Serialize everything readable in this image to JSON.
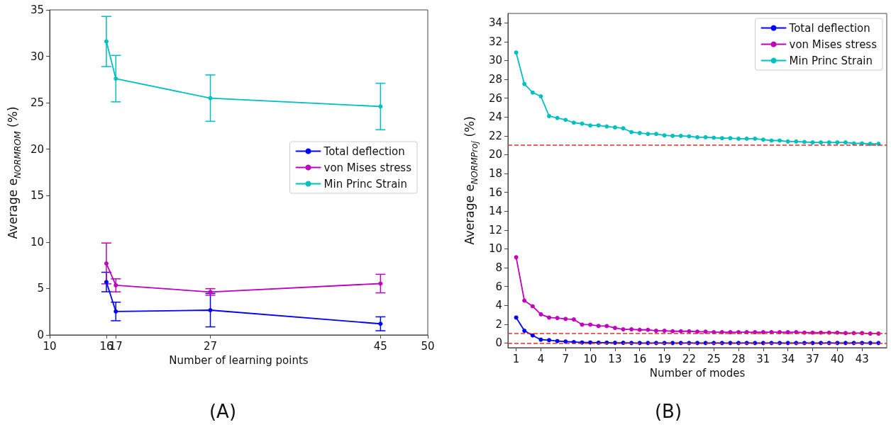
{
  "chart_data": [
    {
      "type": "line",
      "title": "(A)",
      "xlabel": "Number of learning points",
      "ylabel": "Average e$_{NORMROM}$ (%)",
      "x": [
        16,
        17,
        27,
        45
      ],
      "xlim": [
        10,
        50
      ],
      "xticks": [
        10,
        16,
        17,
        27,
        45,
        50
      ],
      "ylim": [
        0,
        35
      ],
      "yticks": [
        0,
        5,
        10,
        15,
        20,
        25,
        30,
        35
      ],
      "marker": "circle",
      "legend": "right",
      "grid": false,
      "series": [
        {
          "name": "Total deflection",
          "color": "#0000ff",
          "values": [
            5.7,
            2.53,
            2.67,
            1.2
          ],
          "errors": [
            1.05,
            1.0,
            1.8,
            0.75
          ]
        },
        {
          "name": "von Mises stress",
          "color": "#bf00bf",
          "values": [
            7.7,
            5.34,
            4.63,
            5.53
          ],
          "errors": [
            2.2,
            0.7,
            0.35,
            1.0
          ]
        },
        {
          "name": "Min Princ Strain",
          "color": "#00bfbf",
          "values": [
            31.6,
            27.6,
            25.5,
            24.6
          ],
          "errors": [
            2.7,
            2.5,
            2.5,
            2.5
          ]
        }
      ]
    },
    {
      "type": "line",
      "title": "(B)",
      "xlabel": "Number of modes",
      "ylabel": "Average e$_{NORMProj}$ (%)",
      "x": [
        1,
        2,
        3,
        4,
        5,
        6,
        7,
        8,
        9,
        10,
        11,
        12,
        13,
        14,
        15,
        16,
        17,
        18,
        19,
        20,
        21,
        22,
        23,
        24,
        25,
        26,
        27,
        28,
        29,
        30,
        31,
        32,
        33,
        34,
        35,
        36,
        37,
        38,
        39,
        40,
        41,
        42,
        43,
        44,
        45
      ],
      "xlim": [
        0,
        46
      ],
      "xticks": [
        1,
        4,
        7,
        10,
        13,
        16,
        19,
        22,
        25,
        28,
        31,
        34,
        37,
        40,
        43
      ],
      "ylim": [
        -0.5,
        35
      ],
      "yticks": [
        0,
        2,
        4,
        6,
        8,
        10,
        12,
        14,
        16,
        18,
        20,
        22,
        24,
        26,
        28,
        30,
        32,
        34
      ],
      "marker": "circle",
      "legend": "top right",
      "grid": false,
      "ref_lines": [
        {
          "axis": "y",
          "value": 21,
          "color": "#e0302a",
          "line_style": "dashed"
        },
        {
          "axis": "y",
          "value": 1,
          "color": "#e0302a",
          "line_style": "dashed"
        },
        {
          "axis": "y",
          "value": 0,
          "color": "#e0302a",
          "line_style": "dashed"
        }
      ],
      "series": [
        {
          "name": "Total deflection",
          "color": "#0000ff",
          "values": [
            2.7,
            1.3,
            0.8,
            0.35,
            0.3,
            0.2,
            0.15,
            0.1,
            0.05,
            0.05,
            0.03,
            0.03,
            0.02,
            0.02,
            0,
            0,
            0,
            0,
            0,
            0,
            0,
            0,
            0,
            0,
            0,
            0,
            0,
            0,
            0,
            0,
            0,
            0,
            0,
            0,
            0,
            0,
            0,
            0,
            0,
            0,
            0,
            0,
            0,
            0,
            0
          ]
        },
        {
          "name": "von Mises stress",
          "color": "#bf00bf",
          "values": [
            9.1,
            4.5,
            3.9,
            3.05,
            2.7,
            2.65,
            2.55,
            2.5,
            1.95,
            1.95,
            1.8,
            1.8,
            1.6,
            1.45,
            1.45,
            1.4,
            1.4,
            1.3,
            1.3,
            1.25,
            1.25,
            1.25,
            1.2,
            1.2,
            1.15,
            1.15,
            1.15,
            1.15,
            1.15,
            1.15,
            1.15,
            1.15,
            1.15,
            1.15,
            1.15,
            1.1,
            1.1,
            1.1,
            1.1,
            1.1,
            1.05,
            1.05,
            1.05,
            1.0,
            1.0
          ]
        },
        {
          "name": "Min Princ Strain",
          "color": "#00bfbf",
          "values": [
            30.85,
            27.5,
            26.6,
            26.2,
            24.1,
            23.9,
            23.7,
            23.4,
            23.3,
            23.1,
            23.1,
            23.0,
            22.9,
            22.8,
            22.4,
            22.3,
            22.2,
            22.2,
            22.05,
            22.0,
            22.0,
            21.95,
            21.85,
            21.85,
            21.8,
            21.75,
            21.75,
            21.7,
            21.7,
            21.7,
            21.6,
            21.5,
            21.5,
            21.4,
            21.4,
            21.35,
            21.3,
            21.3,
            21.3,
            21.3,
            21.3,
            21.2,
            21.2,
            21.15,
            21.15
          ]
        }
      ]
    }
  ]
}
